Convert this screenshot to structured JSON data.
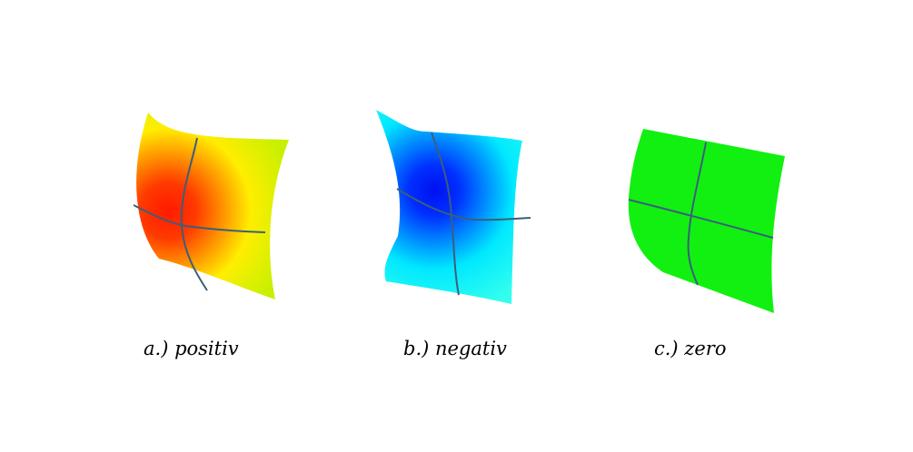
{
  "panels": [
    {
      "caption": "a.) positiv",
      "colors": {
        "base": "#c8f000",
        "mid": "#ffee00",
        "hot": "#ff5a00",
        "center": "#ff1a00"
      }
    },
    {
      "caption": "b.) negativ",
      "colors": {
        "base": "#33ffee",
        "mid": "#00e8ff",
        "hot": "#0050ff",
        "center": "#0010f0"
      }
    },
    {
      "caption": "c.) zero",
      "colors": {
        "base": "#12f012"
      }
    }
  ],
  "colors": {
    "background": "#ffffff",
    "grid_line": "#3b5f7a",
    "caption_text": "#000000"
  }
}
